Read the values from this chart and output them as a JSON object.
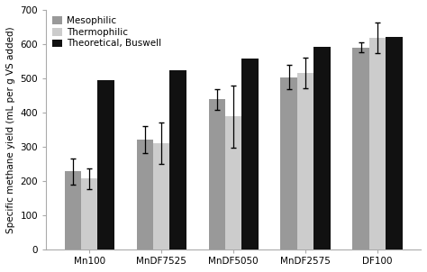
{
  "categories": [
    "Mn100",
    "MnDF7525",
    "MnDF5050",
    "MnDF2575",
    "DF100"
  ],
  "mesophilic_values": [
    228,
    320,
    438,
    503,
    590
  ],
  "mesophilic_errors": [
    38,
    40,
    30,
    35,
    15
  ],
  "thermophilic_values": [
    207,
    310,
    388,
    515,
    618
  ],
  "thermophilic_errors": [
    30,
    60,
    90,
    45,
    45
  ],
  "theoretical_values": [
    494,
    524,
    557,
    591,
    622
  ],
  "bar_color_mesophilic": "#999999",
  "bar_color_thermophilic": "#cccccc",
  "bar_color_theoretical": "#111111",
  "ylabel": "Specific methane yield (mL per g VS added)",
  "ylim": [
    0,
    700
  ],
  "yticks": [
    0,
    100,
    200,
    300,
    400,
    500,
    600,
    700
  ],
  "legend_labels": [
    "Mesophilic",
    "Thermophilic",
    "Theoretical, Buswell"
  ],
  "bar_width": 0.23,
  "figsize": [
    4.74,
    3.02
  ],
  "dpi": 100,
  "background_color": "#ffffff",
  "spine_color": "#aaaaaa"
}
